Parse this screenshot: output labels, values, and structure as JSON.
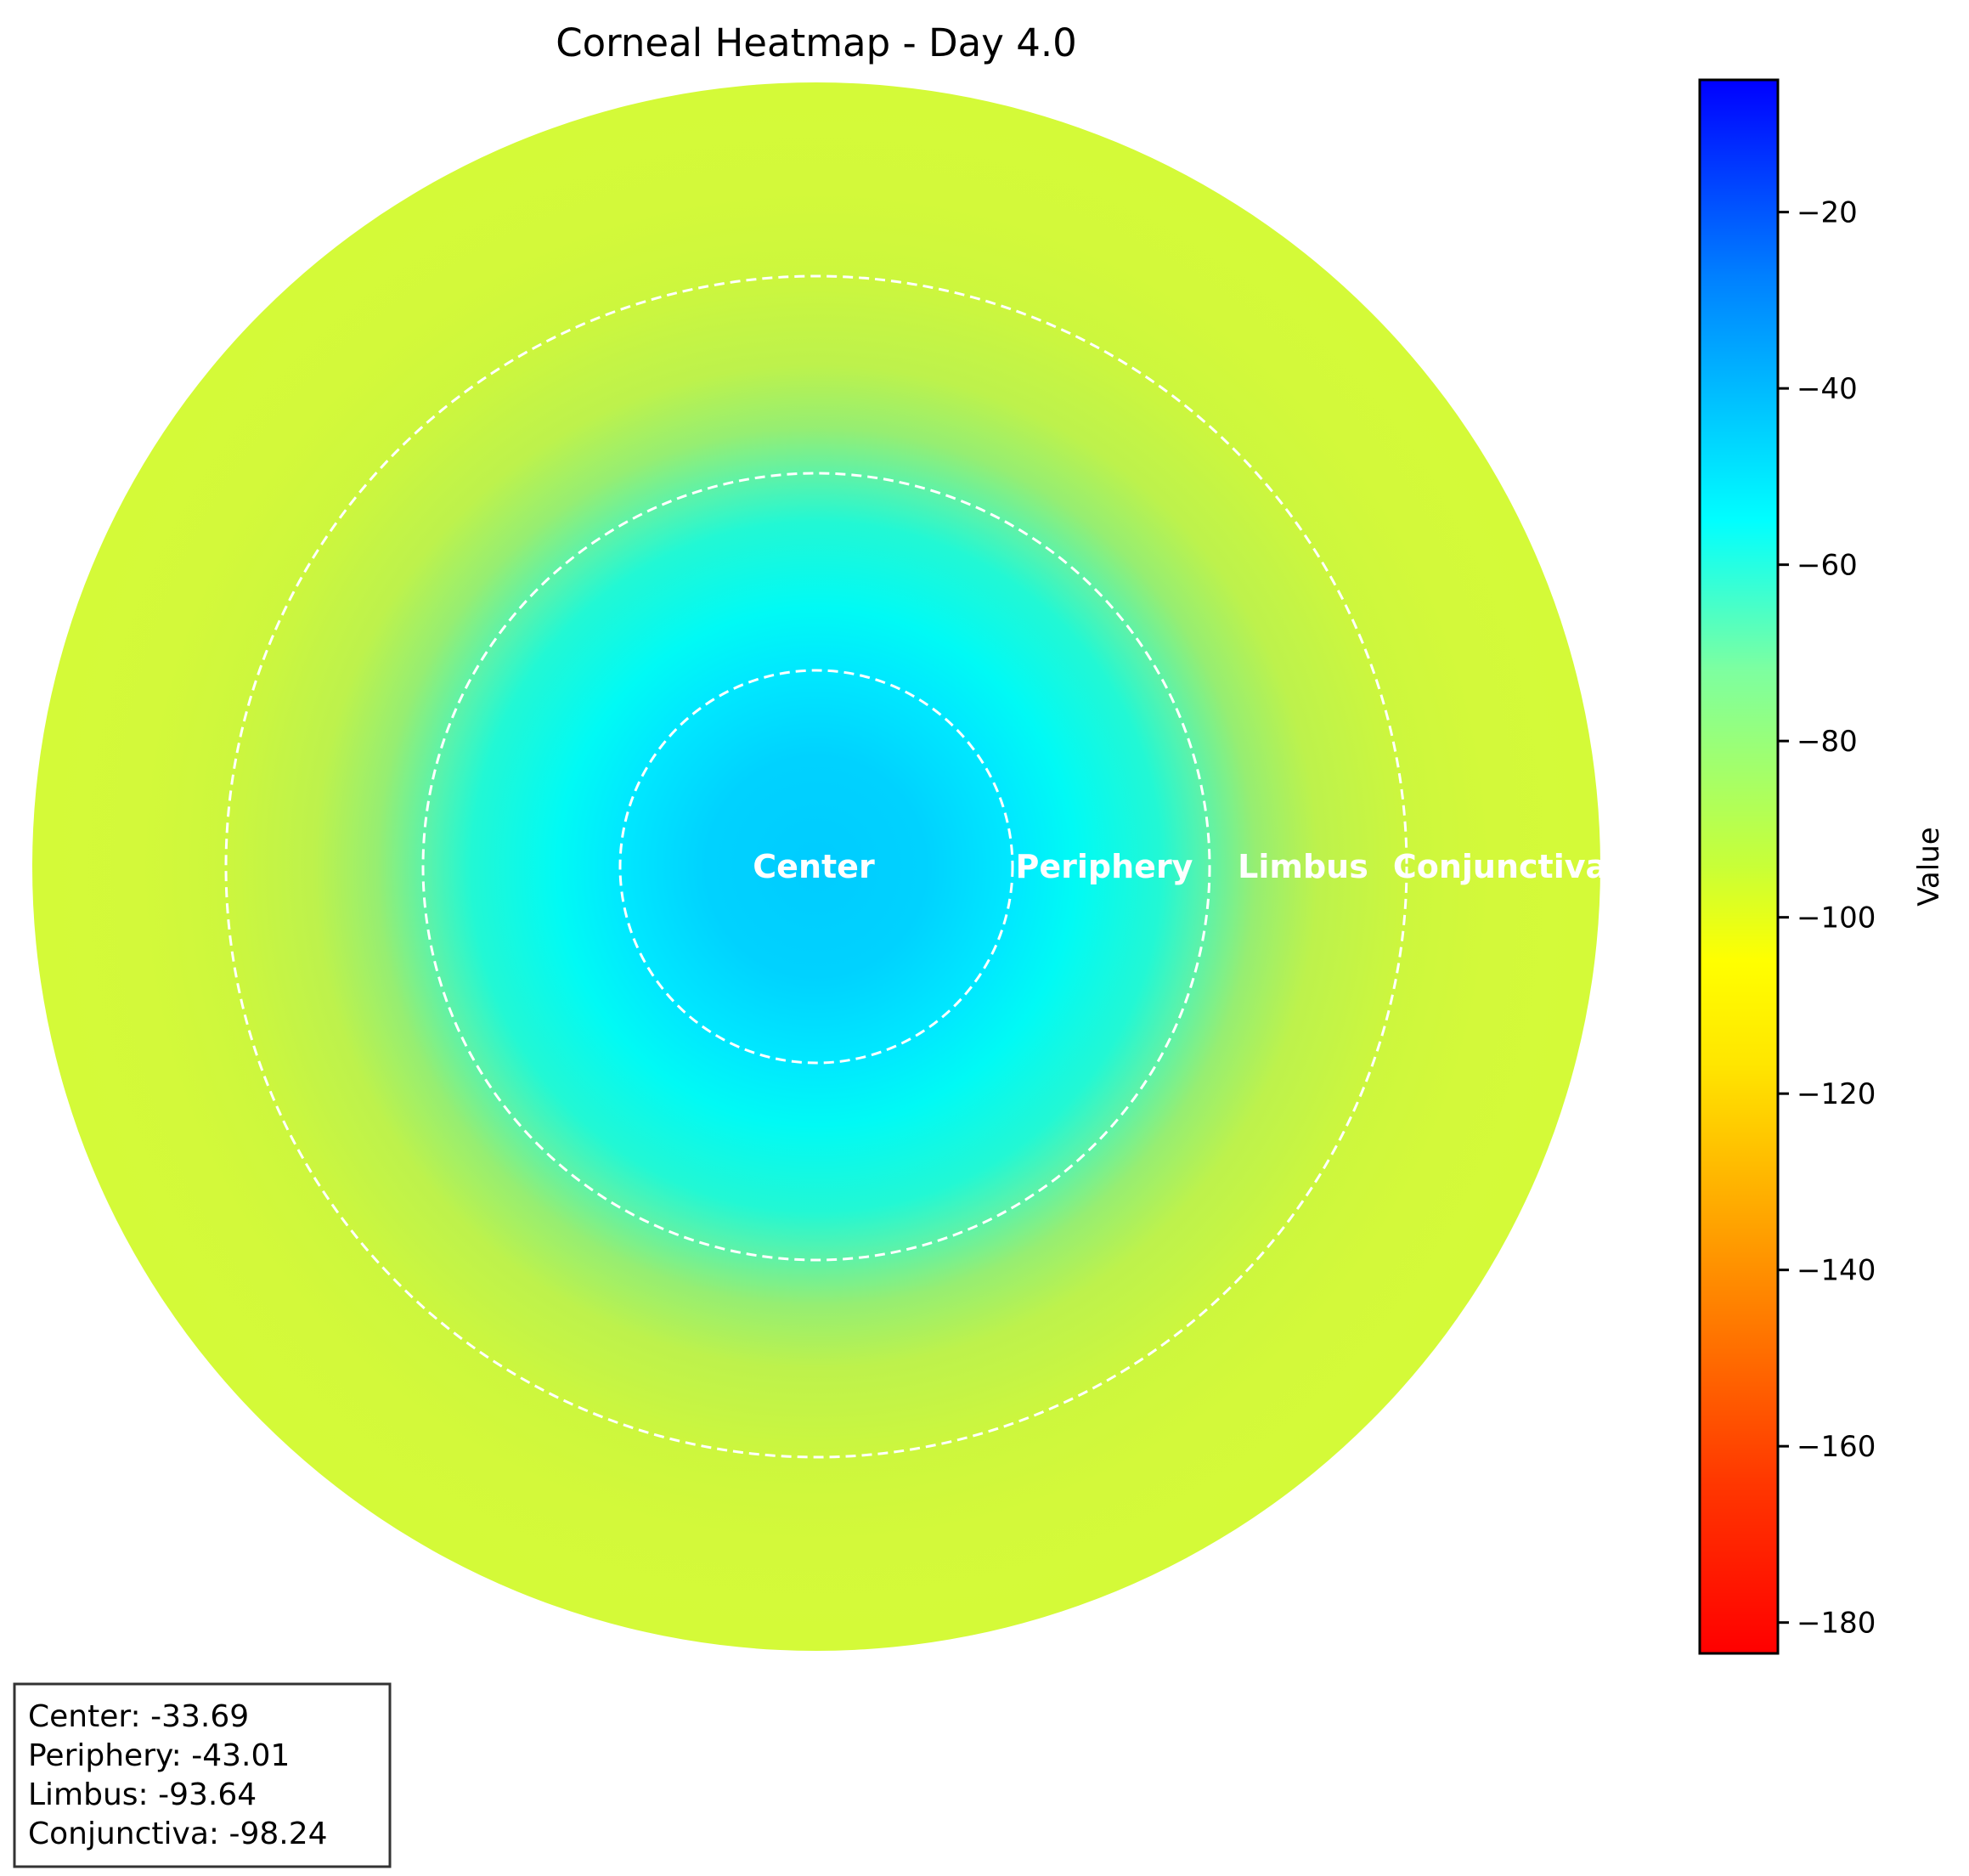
{
  "chart_data": {
    "type": "heatmap",
    "title": "Corneal Heatmap - Day 4.0",
    "regions": [
      {
        "name": "Center",
        "value": -33.69
      },
      {
        "name": "Periphery",
        "value": -43.01
      },
      {
        "name": "Limbus",
        "value": -93.64
      },
      {
        "name": "Conjunctiva",
        "value": -98.24
      }
    ],
    "colorbar": {
      "label": "Value",
      "colormap": "jet_r",
      "range": [
        -183.5,
        -5
      ],
      "ticks": [
        -20,
        -40,
        -60,
        -80,
        -100,
        -120,
        -140,
        -160,
        -180
      ],
      "tick_labels": [
        "−20",
        "−40",
        "−60",
        "−80",
        "−100",
        "−120",
        "−140",
        "−160",
        "−180"
      ]
    },
    "stats_box": [
      "Center: -33.69",
      "Periphery: -43.01",
      "Limbus: -93.64",
      "Conjunctiva: -98.24"
    ]
  }
}
